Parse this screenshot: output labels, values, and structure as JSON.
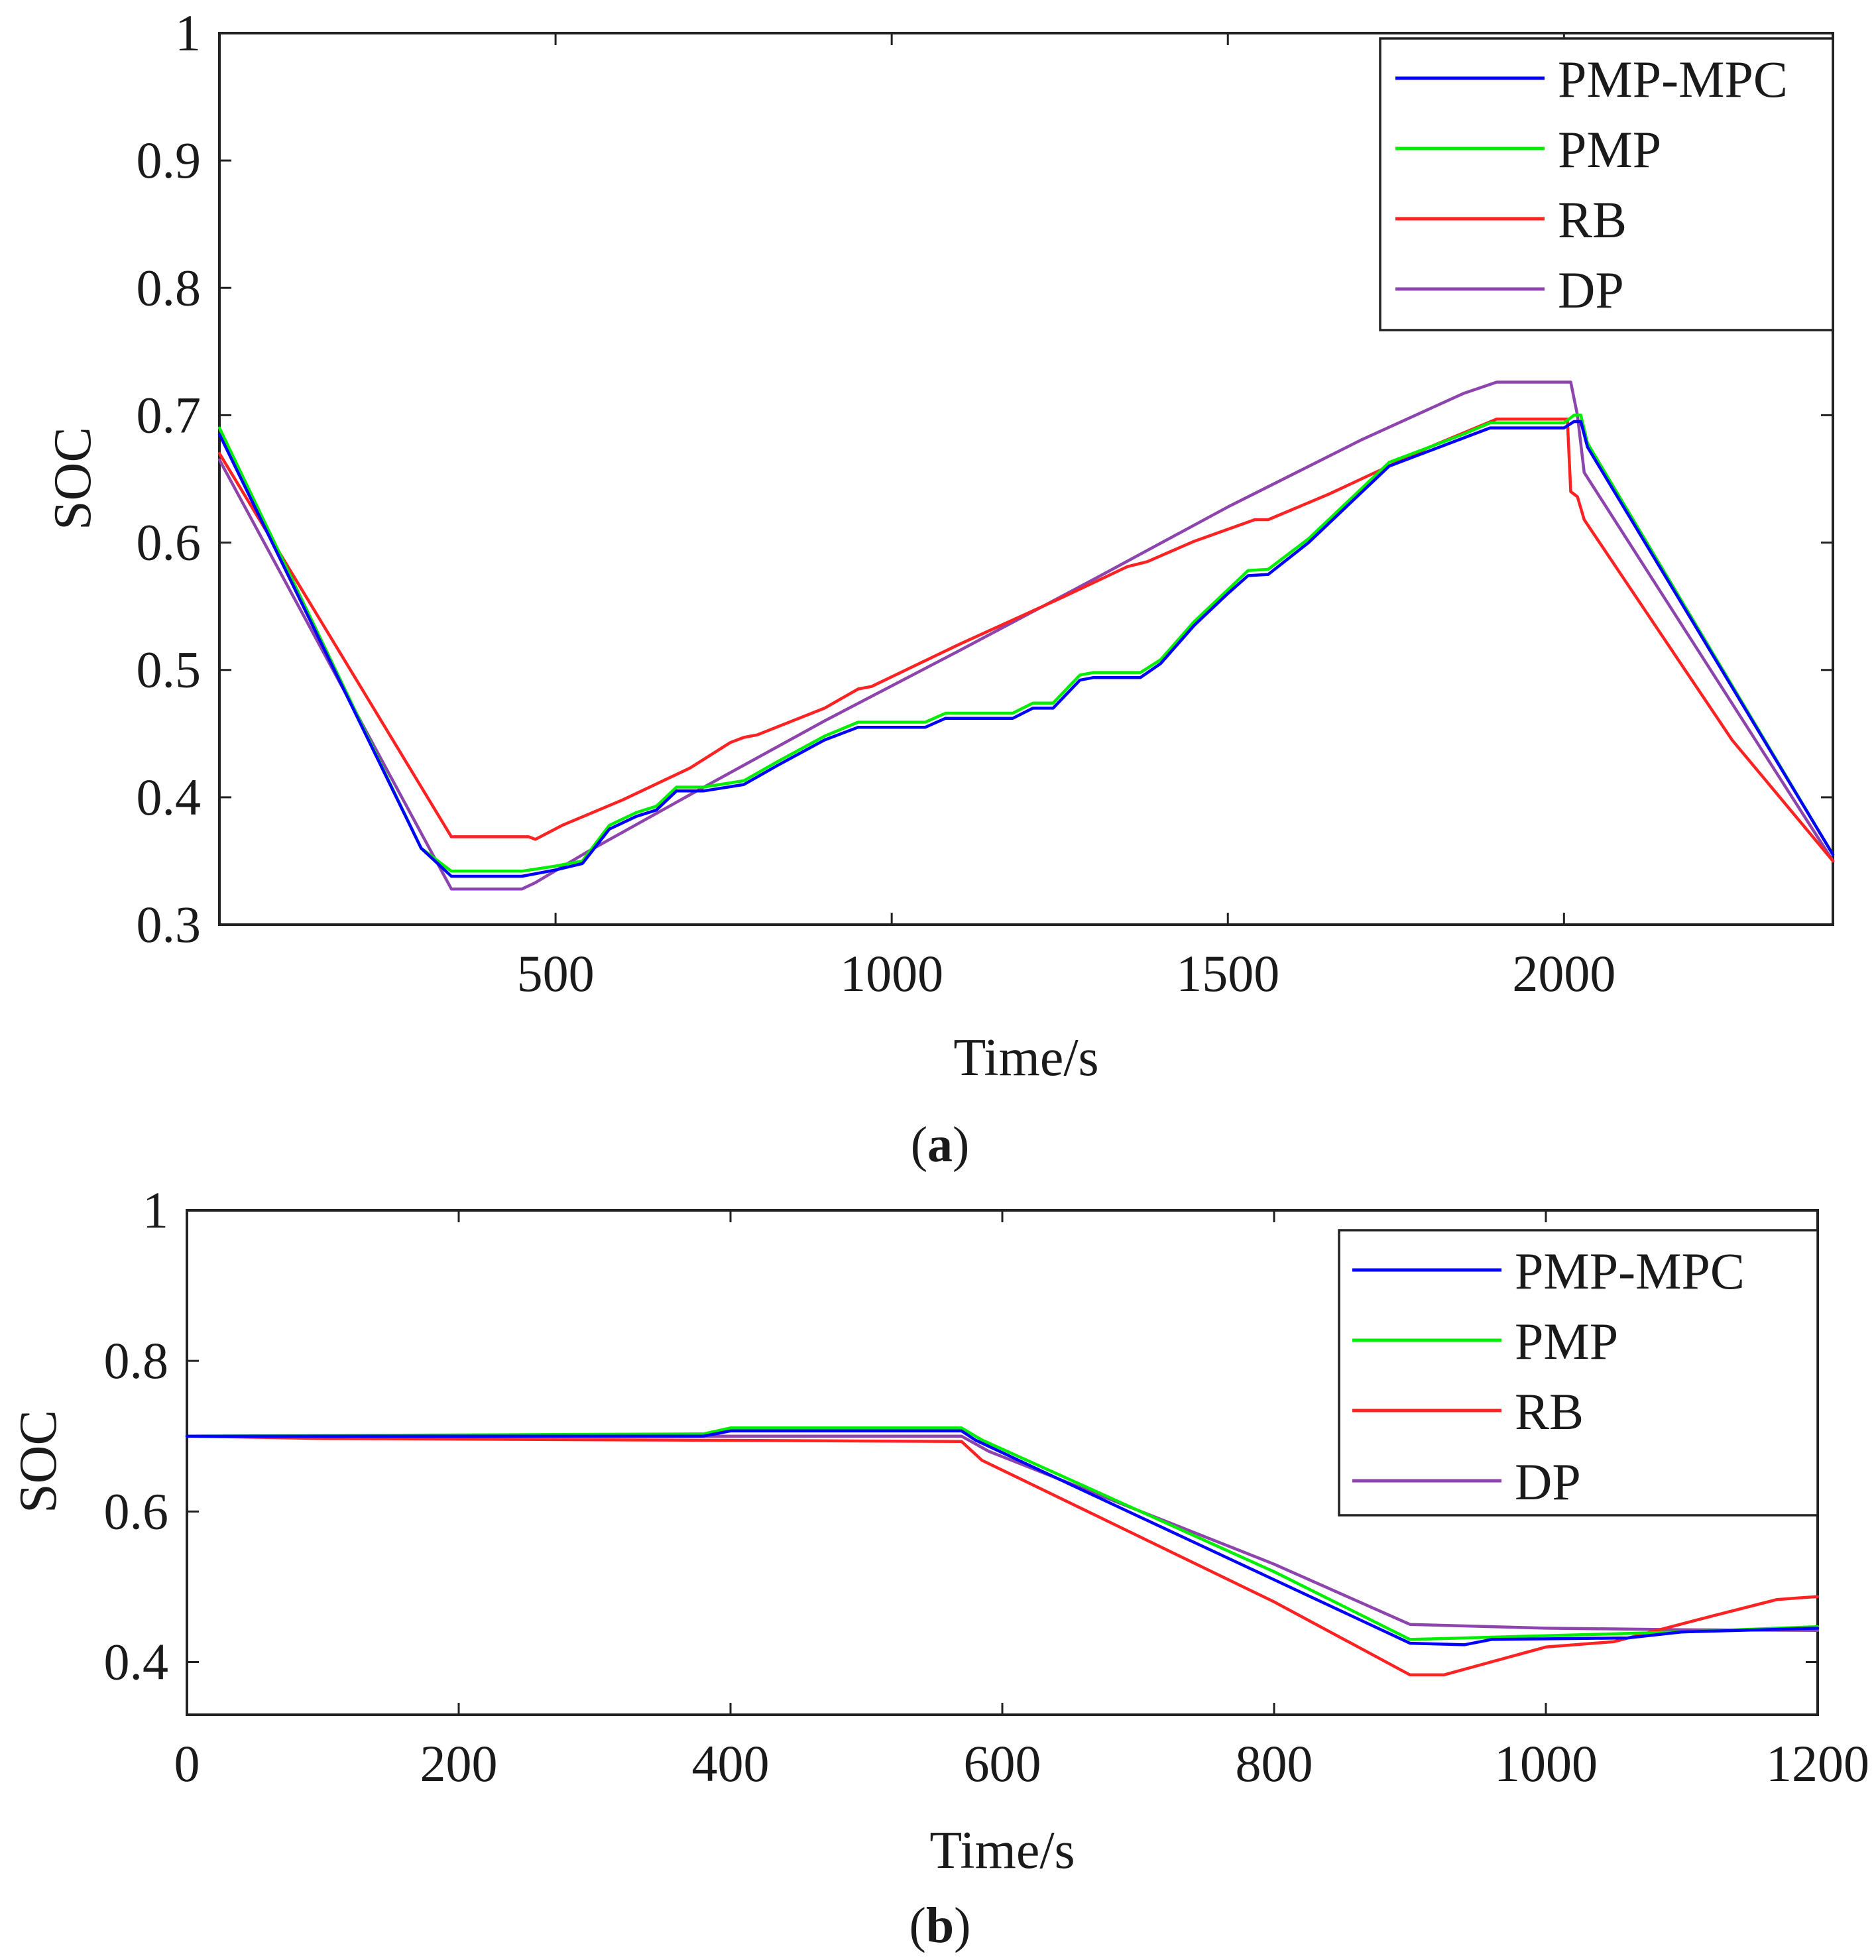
{
  "charts": [
    {
      "id": "a",
      "caption_letter": "a",
      "chart_data": {
        "type": "line",
        "title": "",
        "xlabel": "Time/s",
        "ylabel": "SOC",
        "xlim": [
          0,
          2400
        ],
        "ylim": [
          0.3,
          1.0
        ],
        "xticks": [
          500,
          1000,
          1500,
          2000
        ],
        "xtick_labels": [
          "500",
          "1000",
          "1500",
          "2000"
        ],
        "yticks": [
          0.3,
          0.4,
          0.5,
          0.6,
          0.7,
          0.8,
          0.9,
          1.0
        ],
        "ytick_labels": [
          "0.3",
          "0.4",
          "0.5",
          "0.6",
          "0.7",
          "0.8",
          "0.9",
          "1"
        ],
        "legend_position": "top-right",
        "series": [
          {
            "name": "PMP-MPC",
            "color": "#0000ff",
            "points": [
              [
                0,
                0.685
              ],
              [
                300,
                0.36
              ],
              [
                345,
                0.338
              ],
              [
                450,
                0.338
              ],
              [
                500,
                0.343
              ],
              [
                540,
                0.348
              ],
              [
                580,
                0.375
              ],
              [
                620,
                0.385
              ],
              [
                650,
                0.39
              ],
              [
                680,
                0.405
              ],
              [
                720,
                0.405
              ],
              [
                780,
                0.41
              ],
              [
                830,
                0.425
              ],
              [
                900,
                0.445
              ],
              [
                950,
                0.455
              ],
              [
                1050,
                0.455
              ],
              [
                1080,
                0.462
              ],
              [
                1180,
                0.462
              ],
              [
                1210,
                0.47
              ],
              [
                1240,
                0.47
              ],
              [
                1280,
                0.492
              ],
              [
                1300,
                0.494
              ],
              [
                1370,
                0.494
              ],
              [
                1400,
                0.505
              ],
              [
                1450,
                0.535
              ],
              [
                1500,
                0.56
              ],
              [
                1530,
                0.574
              ],
              [
                1560,
                0.575
              ],
              [
                1620,
                0.6
              ],
              [
                1680,
                0.63
              ],
              [
                1740,
                0.66
              ],
              [
                1800,
                0.672
              ],
              [
                1850,
                0.682
              ],
              [
                1890,
                0.69
              ],
              [
                2000,
                0.69
              ],
              [
                2015,
                0.695
              ],
              [
                2025,
                0.695
              ],
              [
                2035,
                0.675
              ],
              [
                2400,
                0.355
              ]
            ]
          },
          {
            "name": "PMP",
            "color": "#00ee00",
            "points": [
              [
                0,
                0.69
              ],
              [
                300,
                0.36
              ],
              [
                345,
                0.342
              ],
              [
                450,
                0.342
              ],
              [
                500,
                0.346
              ],
              [
                540,
                0.35
              ],
              [
                580,
                0.378
              ],
              [
                620,
                0.388
              ],
              [
                650,
                0.393
              ],
              [
                680,
                0.408
              ],
              [
                720,
                0.408
              ],
              [
                780,
                0.413
              ],
              [
                830,
                0.428
              ],
              [
                900,
                0.448
              ],
              [
                950,
                0.459
              ],
              [
                1050,
                0.459
              ],
              [
                1080,
                0.466
              ],
              [
                1180,
                0.466
              ],
              [
                1210,
                0.474
              ],
              [
                1240,
                0.474
              ],
              [
                1280,
                0.496
              ],
              [
                1300,
                0.498
              ],
              [
                1370,
                0.498
              ],
              [
                1400,
                0.508
              ],
              [
                1450,
                0.538
              ],
              [
                1500,
                0.563
              ],
              [
                1530,
                0.578
              ],
              [
                1560,
                0.579
              ],
              [
                1620,
                0.603
              ],
              [
                1680,
                0.633
              ],
              [
                1740,
                0.663
              ],
              [
                1800,
                0.675
              ],
              [
                1850,
                0.685
              ],
              [
                1890,
                0.694
              ],
              [
                2000,
                0.694
              ],
              [
                2015,
                0.7
              ],
              [
                2025,
                0.7
              ],
              [
                2035,
                0.678
              ],
              [
                2400,
                0.355
              ]
            ]
          },
          {
            "name": "RB",
            "color": "#ff2222",
            "points": [
              [
                0,
                0.67
              ],
              [
                345,
                0.369
              ],
              [
                460,
                0.369
              ],
              [
                470,
                0.367
              ],
              [
                510,
                0.378
              ],
              [
                600,
                0.398
              ],
              [
                700,
                0.423
              ],
              [
                760,
                0.443
              ],
              [
                780,
                0.447
              ],
              [
                800,
                0.449
              ],
              [
                900,
                0.47
              ],
              [
                950,
                0.485
              ],
              [
                970,
                0.487
              ],
              [
                1100,
                0.52
              ],
              [
                1250,
                0.556
              ],
              [
                1350,
                0.581
              ],
              [
                1380,
                0.585
              ],
              [
                1450,
                0.601
              ],
              [
                1540,
                0.618
              ],
              [
                1560,
                0.618
              ],
              [
                1650,
                0.638
              ],
              [
                1800,
                0.675
              ],
              [
                1900,
                0.697
              ],
              [
                2000,
                0.697
              ],
              [
                2005,
                0.697
              ],
              [
                2010,
                0.64
              ],
              [
                2020,
                0.636
              ],
              [
                2030,
                0.618
              ],
              [
                2250,
                0.445
              ],
              [
                2400,
                0.35
              ]
            ]
          },
          {
            "name": "DP",
            "color": "#8e44ad",
            "points": [
              [
                0,
                0.665
              ],
              [
                345,
                0.328
              ],
              [
                450,
                0.328
              ],
              [
                470,
                0.333
              ],
              [
                550,
                0.358
              ],
              [
                700,
                0.402
              ],
              [
                900,
                0.46
              ],
              [
                1100,
                0.515
              ],
              [
                1300,
                0.571
              ],
              [
                1500,
                0.628
              ],
              [
                1700,
                0.681
              ],
              [
                1850,
                0.717
              ],
              [
                1900,
                0.726
              ],
              [
                2000,
                0.726
              ],
              [
                2010,
                0.726
              ],
              [
                2020,
                0.7
              ],
              [
                2030,
                0.655
              ],
              [
                2400,
                0.35
              ]
            ]
          }
        ]
      }
    },
    {
      "id": "b",
      "caption_letter": "b",
      "chart_data": {
        "type": "line",
        "title": "",
        "xlabel": "Time/s",
        "ylabel": "SOC",
        "xlim": [
          0,
          1200
        ],
        "ylim": [
          0.33,
          1.0
        ],
        "xticks": [
          0,
          200,
          400,
          600,
          800,
          1000,
          1200
        ],
        "xtick_labels": [
          "0",
          "200",
          "400",
          "600",
          "800",
          "1000",
          "1200"
        ],
        "yticks": [
          0.4,
          0.6,
          0.8,
          1.0
        ],
        "ytick_labels": [
          "0.4",
          "0.6",
          "0.8",
          "1"
        ],
        "legend_position": "top-right",
        "series": [
          {
            "name": "PMP-MPC",
            "color": "#0000ff",
            "points": [
              [
                0,
                0.7
              ],
              [
                380,
                0.7
              ],
              [
                400,
                0.707
              ],
              [
                570,
                0.707
              ],
              [
                580,
                0.695
              ],
              [
                900,
                0.425
              ],
              [
                940,
                0.423
              ],
              [
                960,
                0.43
              ],
              [
                1060,
                0.432
              ],
              [
                1100,
                0.44
              ],
              [
                1200,
                0.445
              ]
            ]
          },
          {
            "name": "PMP",
            "color": "#00ee00",
            "points": [
              [
                0,
                0.7
              ],
              [
                380,
                0.703
              ],
              [
                400,
                0.711
              ],
              [
                570,
                0.711
              ],
              [
                585,
                0.695
              ],
              [
                800,
                0.52
              ],
              [
                900,
                0.43
              ],
              [
                1000,
                0.435
              ],
              [
                1100,
                0.44
              ],
              [
                1200,
                0.447
              ]
            ]
          },
          {
            "name": "RB",
            "color": "#ff2222",
            "points": [
              [
                0,
                0.7
              ],
              [
                100,
                0.697
              ],
              [
                570,
                0.693
              ],
              [
                585,
                0.668
              ],
              [
                800,
                0.48
              ],
              [
                900,
                0.383
              ],
              [
                925,
                0.383
              ],
              [
                1000,
                0.42
              ],
              [
                1050,
                0.427
              ],
              [
                1120,
                0.46
              ],
              [
                1170,
                0.483
              ],
              [
                1185,
                0.485
              ],
              [
                1200,
                0.487
              ]
            ]
          },
          {
            "name": "DP",
            "color": "#8e44ad",
            "points": [
              [
                0,
                0.7
              ],
              [
                570,
                0.7
              ],
              [
                590,
                0.68
              ],
              [
                800,
                0.53
              ],
              [
                900,
                0.45
              ],
              [
                1000,
                0.445
              ],
              [
                1100,
                0.443
              ],
              [
                1200,
                0.442
              ]
            ]
          }
        ]
      }
    }
  ]
}
